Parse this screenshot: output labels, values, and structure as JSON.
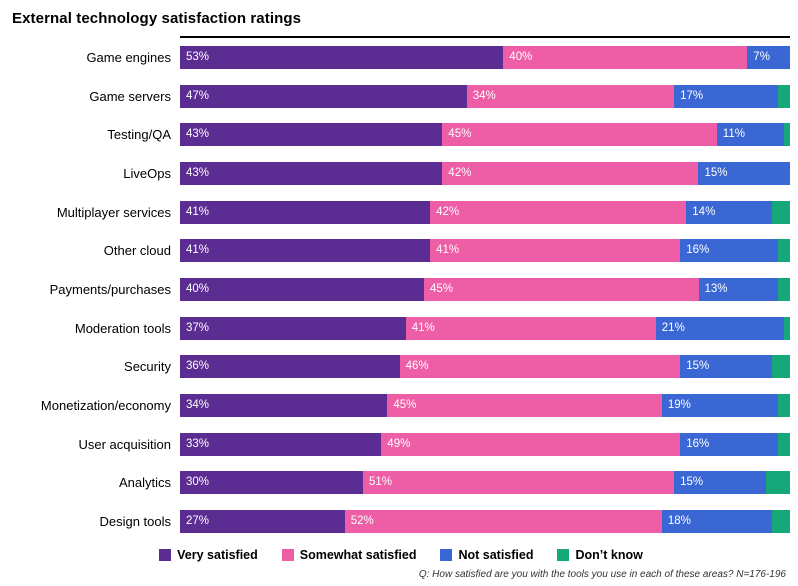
{
  "title": "External technology satisfaction ratings",
  "footnote": "Q: How satisfied are you with the tools you use in each of these areas? N=176-196",
  "chart_data": {
    "type": "bar",
    "orientation": "horizontal",
    "stacked": true,
    "value_suffix": "%",
    "label_threshold": 5,
    "xlim": [
      0,
      100
    ],
    "legend_position": "bottom",
    "categories": [
      "Game engines",
      "Game servers",
      "Testing/QA",
      "LiveOps",
      "Multiplayer services",
      "Other cloud",
      "Payments/purchases",
      "Moderation tools",
      "Security",
      "Monetization/economy",
      "User acquisition",
      "Analytics",
      "Design tools"
    ],
    "series": [
      {
        "name": "Very satisfied",
        "color": "#5B2C91",
        "values": [
          53,
          47,
          43,
          43,
          41,
          41,
          40,
          37,
          36,
          34,
          33,
          30,
          27
        ]
      },
      {
        "name": "Somewhat satisfied",
        "color": "#EE5EA6",
        "values": [
          40,
          34,
          45,
          42,
          42,
          41,
          45,
          41,
          46,
          45,
          49,
          51,
          52
        ]
      },
      {
        "name": "Not satisfied",
        "color": "#3A67D4",
        "values": [
          7,
          17,
          11,
          15,
          14,
          16,
          13,
          21,
          15,
          19,
          16,
          15,
          18
        ]
      },
      {
        "name": "Don’t know",
        "color": "#16A878",
        "values": [
          0,
          2,
          1,
          0,
          3,
          2,
          2,
          1,
          3,
          2,
          2,
          4,
          3
        ]
      }
    ]
  }
}
